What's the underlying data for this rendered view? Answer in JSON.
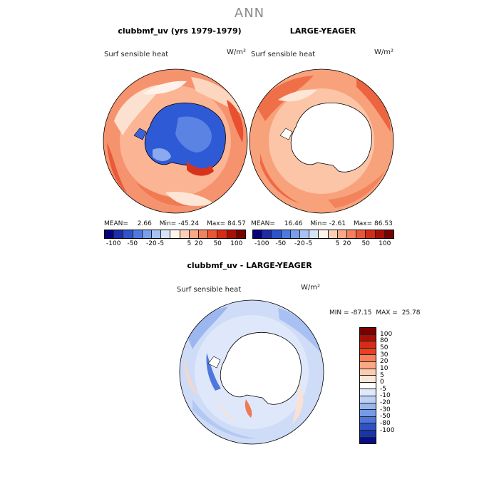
{
  "season": "ANN",
  "panel1": {
    "title": "clubbmf_uv (yrs 1979-1979)",
    "variable": "Surf sensible heat",
    "units": "W/m²",
    "mean_label": "MEAN=",
    "mean": "2.66",
    "min_label": "Min=",
    "min": "-45.24",
    "max_label": "Max=",
    "max": "84.57"
  },
  "panel2": {
    "title": "LARGE-YEAGER",
    "variable": "Surf sensible heat",
    "units": "W/m²",
    "mean_label": "MEAN=",
    "mean": "16.46",
    "min_label": "Min=",
    "min": "-2.61",
    "max_label": "Max=",
    "max": "86.53"
  },
  "panel3": {
    "title": "clubbmf_uv - LARGE-YEAGER",
    "variable": "Surf sensible heat",
    "units": "W/m²",
    "min_label": "MIN =",
    "min": "-87.15",
    "max_label": "MAX =",
    "max": "25.78"
  },
  "colorbar_top": {
    "colors": [
      "#08007a",
      "#1d2ca8",
      "#2f53c8",
      "#4e79e0",
      "#7b9eec",
      "#a8c2f4",
      "#d6e3fb",
      "#fff3ea",
      "#fdd0b6",
      "#fba887",
      "#f5805c",
      "#ea5536",
      "#d32c17",
      "#a80f07",
      "#7a0000"
    ],
    "tick_labels": [
      "-100",
      "-50",
      "-20",
      "-5",
      "5",
      "20",
      "50",
      "100"
    ]
  },
  "colorbar_diff": {
    "colors": [
      "#7a0000",
      "#a80f07",
      "#d32c17",
      "#ea4020",
      "#f5805c",
      "#fba887",
      "#fdcbb0",
      "#fde6d6",
      "#ffffff",
      "#dfe9fb",
      "#bcd0f5",
      "#98b6ef",
      "#759ae6",
      "#4d75da",
      "#2e52c4",
      "#1a35a8",
      "#0a0d86"
    ],
    "tick_labels": [
      "100",
      "80",
      "50",
      "30",
      "20",
      "10",
      "5",
      "0",
      "-5",
      "-10",
      "-20",
      "-30",
      "-50",
      "-80",
      "-100"
    ]
  }
}
